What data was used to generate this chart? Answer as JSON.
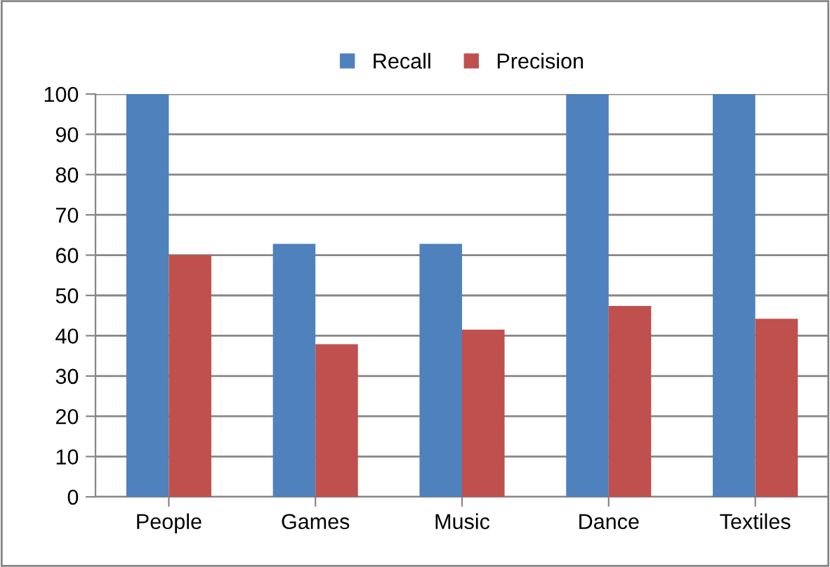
{
  "chart_data": {
    "type": "bar",
    "categories": [
      "People",
      "Games",
      "Music",
      "Dance",
      "Textiles"
    ],
    "series": [
      {
        "name": "Recall",
        "color": "#4f81bd",
        "values": [
          100,
          62.8,
          62.8,
          100,
          100
        ]
      },
      {
        "name": "Precision",
        "color": "#c0504d",
        "values": [
          60,
          37.9,
          41.5,
          47.4,
          44.2
        ]
      }
    ],
    "ylim": [
      0,
      100
    ],
    "yticks": [
      0,
      10,
      20,
      30,
      40,
      50,
      60,
      70,
      80,
      90,
      100
    ],
    "grid": "y",
    "legend": "top"
  }
}
